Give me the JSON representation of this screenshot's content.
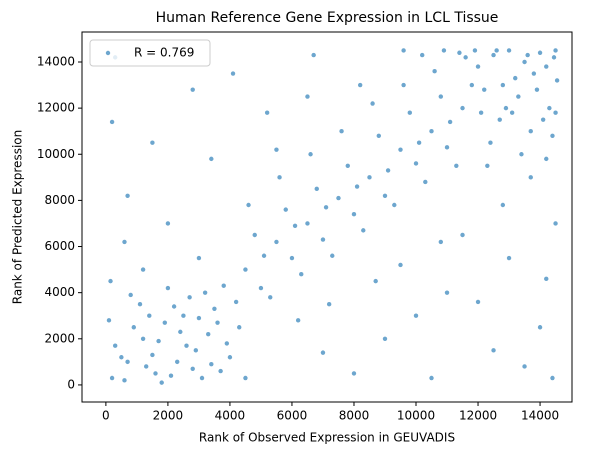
{
  "chart_data": {
    "type": "scatter",
    "title": "Human Reference Gene Expression in LCL Tissue",
    "xlabel": "Rank of Observed Expression in GEUVADIS",
    "ylabel": "Rank of Predicted Expression",
    "xlim": [
      -770,
      15030
    ],
    "ylim": [
      -740,
      15300
    ],
    "xticks": [
      0,
      2000,
      4000,
      6000,
      8000,
      10000,
      12000,
      14000
    ],
    "yticks": [
      0,
      2000,
      4000,
      6000,
      8000,
      10000,
      12000,
      14000
    ],
    "legend": "upper left",
    "series": [
      {
        "name": "R = 0.769",
        "color": "#1f77b4",
        "x": [
          200,
          500,
          900,
          1300,
          1700,
          2100,
          2500,
          2900,
          3300,
          3700,
          100,
          600,
          1100,
          1500,
          1900,
          2300,
          2700,
          3100,
          3500,
          3900,
          300,
          800,
          1200,
          1600,
          2000,
          2400,
          2800,
          3200,
          3600,
          4000,
          150,
          700,
          1400,
          1800,
          2200,
          2600,
          3000,
          3400,
          3800,
          4300,
          4500,
          5000,
          5500,
          6000,
          6500,
          7000,
          7500,
          8000,
          8500,
          9000,
          9500,
          10000,
          10500,
          11000,
          11500,
          4800,
          5300,
          5800,
          6300,
          6800,
          7300,
          7800,
          8300,
          8800,
          9300,
          9800,
          10300,
          10800,
          11300,
          11800,
          4200,
          4600,
          5100,
          5600,
          6100,
          6600,
          7100,
          7600,
          8100,
          8600,
          9100,
          9600,
          10100,
          10600,
          11100,
          11600,
          12100,
          6200,
          7200,
          8700,
          12000,
          12500,
          13000,
          13500,
          14000,
          14500,
          12800,
          13300,
          13800,
          14300,
          12200,
          12700,
          13200,
          13700,
          14200,
          14500,
          12400,
          12900,
          13400,
          13900,
          14400,
          12600,
          13100,
          13600,
          14100,
          14550,
          11900,
          12300,
          13700,
          14200,
          11400,
          10900,
          10200,
          9600,
          14450,
          300,
          1500,
          2800,
          700,
          4100,
          5200,
          3400,
          6700,
          2000,
          600,
          9000,
          11000,
          12500,
          14000,
          13000,
          10000,
          8000,
          14500,
          11500,
          13500,
          9500,
          12000,
          14200,
          7000,
          10500,
          5500,
          4500,
          3000,
          1200,
          200,
          8200,
          6500,
          14400,
          12800,
          10800
        ],
        "values": [
          300,
          1200,
          2500,
          800,
          1900,
          400,
          3000,
          1500,
          2200,
          600,
          2800,
          200,
          3500,
          1300,
          2700,
          1000,
          3800,
          300,
          3300,
          1800,
          1700,
          3900,
          2000,
          500,
          4200,
          2300,
          700,
          4000,
          2700,
          1200,
          4500,
          1000,
          3000,
          100,
          3400,
          1700,
          2900,
          900,
          4300,
          2500,
          5000,
          4200,
          6200,
          5500,
          7000,
          6300,
          8100,
          7400,
          9000,
          8200,
          10200,
          9600,
          11000,
          10300,
          12000,
          6500,
          3800,
          7600,
          4800,
          8500,
          5600,
          9500,
          6700,
          10800,
          7800,
          11800,
          8800,
          12500,
          9500,
          13000,
          3600,
          7800,
          5600,
          9000,
          6900,
          10000,
          7700,
          11000,
          8600,
          12200,
          9300,
          13000,
          10500,
          13600,
          11400,
          14200,
          11800,
          2800,
          3500,
          4500,
          13800,
          14300,
          14500,
          14000,
          14400,
          14500,
          13000,
          12500,
          13500,
          12000,
          12800,
          11500,
          13300,
          11000,
          13800,
          11800,
          10500,
          12000,
          10000,
          12800,
          10800,
          14500,
          11800,
          14300,
          11500,
          13200,
          14500,
          9500,
          9000,
          9800,
          14400,
          14500,
          14300,
          14500,
          14200,
          14200,
          10500,
          12800,
          8200,
          13500,
          11800,
          9800,
          14300,
          7000,
          6200,
          2000,
          4000,
          1500,
          2500,
          5500,
          3000,
          500,
          7000,
          6500,
          800,
          5200,
          3600,
          4600,
          1400,
          300,
          10200,
          300,
          5500,
          5000,
          11400,
          13000,
          12500,
          300,
          7800,
          6200
        ]
      }
    ]
  }
}
